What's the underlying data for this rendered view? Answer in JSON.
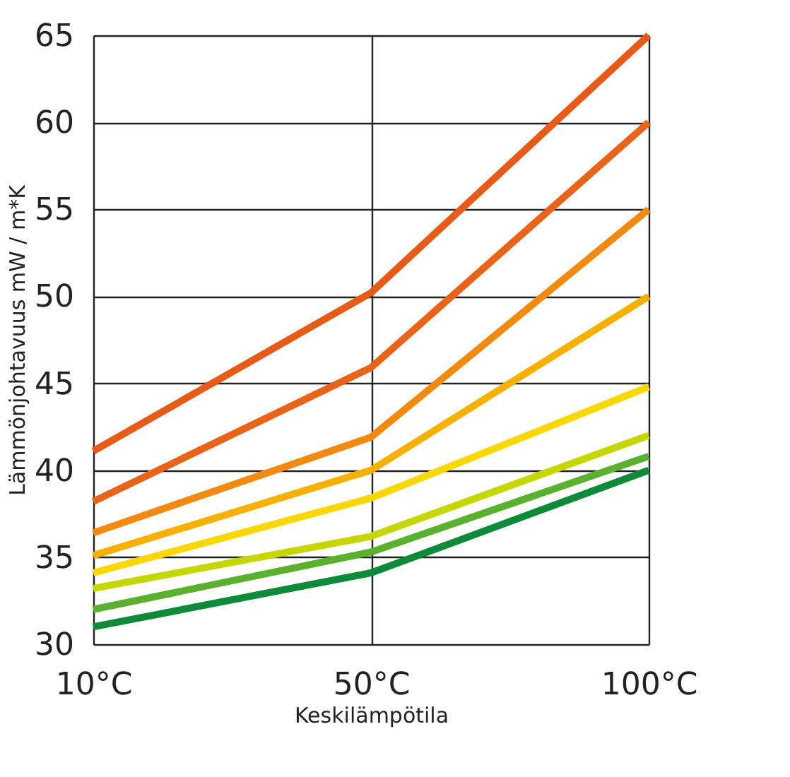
{
  "chart_data": {
    "type": "line",
    "xlabel": "Keskilämpötila",
    "ylabel": "Lämmönjohtavuus mW / m*K",
    "categories": [
      "10°C",
      "50°C",
      "100°C"
    ],
    "ylim": [
      30,
      65
    ],
    "yticks": [
      30,
      35,
      40,
      45,
      50,
      55,
      60,
      65
    ],
    "grid": true,
    "legend": false,
    "marker": "none",
    "line_style": "solid",
    "series": [
      {
        "color": "#e65a1a",
        "values": [
          41.1,
          50.2,
          65
        ]
      },
      {
        "color": "#e8641a",
        "values": [
          38.2,
          45.9,
          60
        ]
      },
      {
        "color": "#f08a10",
        "values": [
          36.4,
          41.9,
          55
        ]
      },
      {
        "color": "#f7b000",
        "values": [
          35.1,
          40,
          50
        ]
      },
      {
        "color": "#f8d800",
        "values": [
          34.1,
          38.4,
          44.8
        ]
      },
      {
        "color": "#c6d600",
        "values": [
          33.2,
          36.2,
          42
        ]
      },
      {
        "color": "#5cb030",
        "values": [
          32,
          35.3,
          40.8
        ]
      },
      {
        "color": "#0f8a3a",
        "values": [
          31,
          34.1,
          40
        ]
      }
    ]
  }
}
